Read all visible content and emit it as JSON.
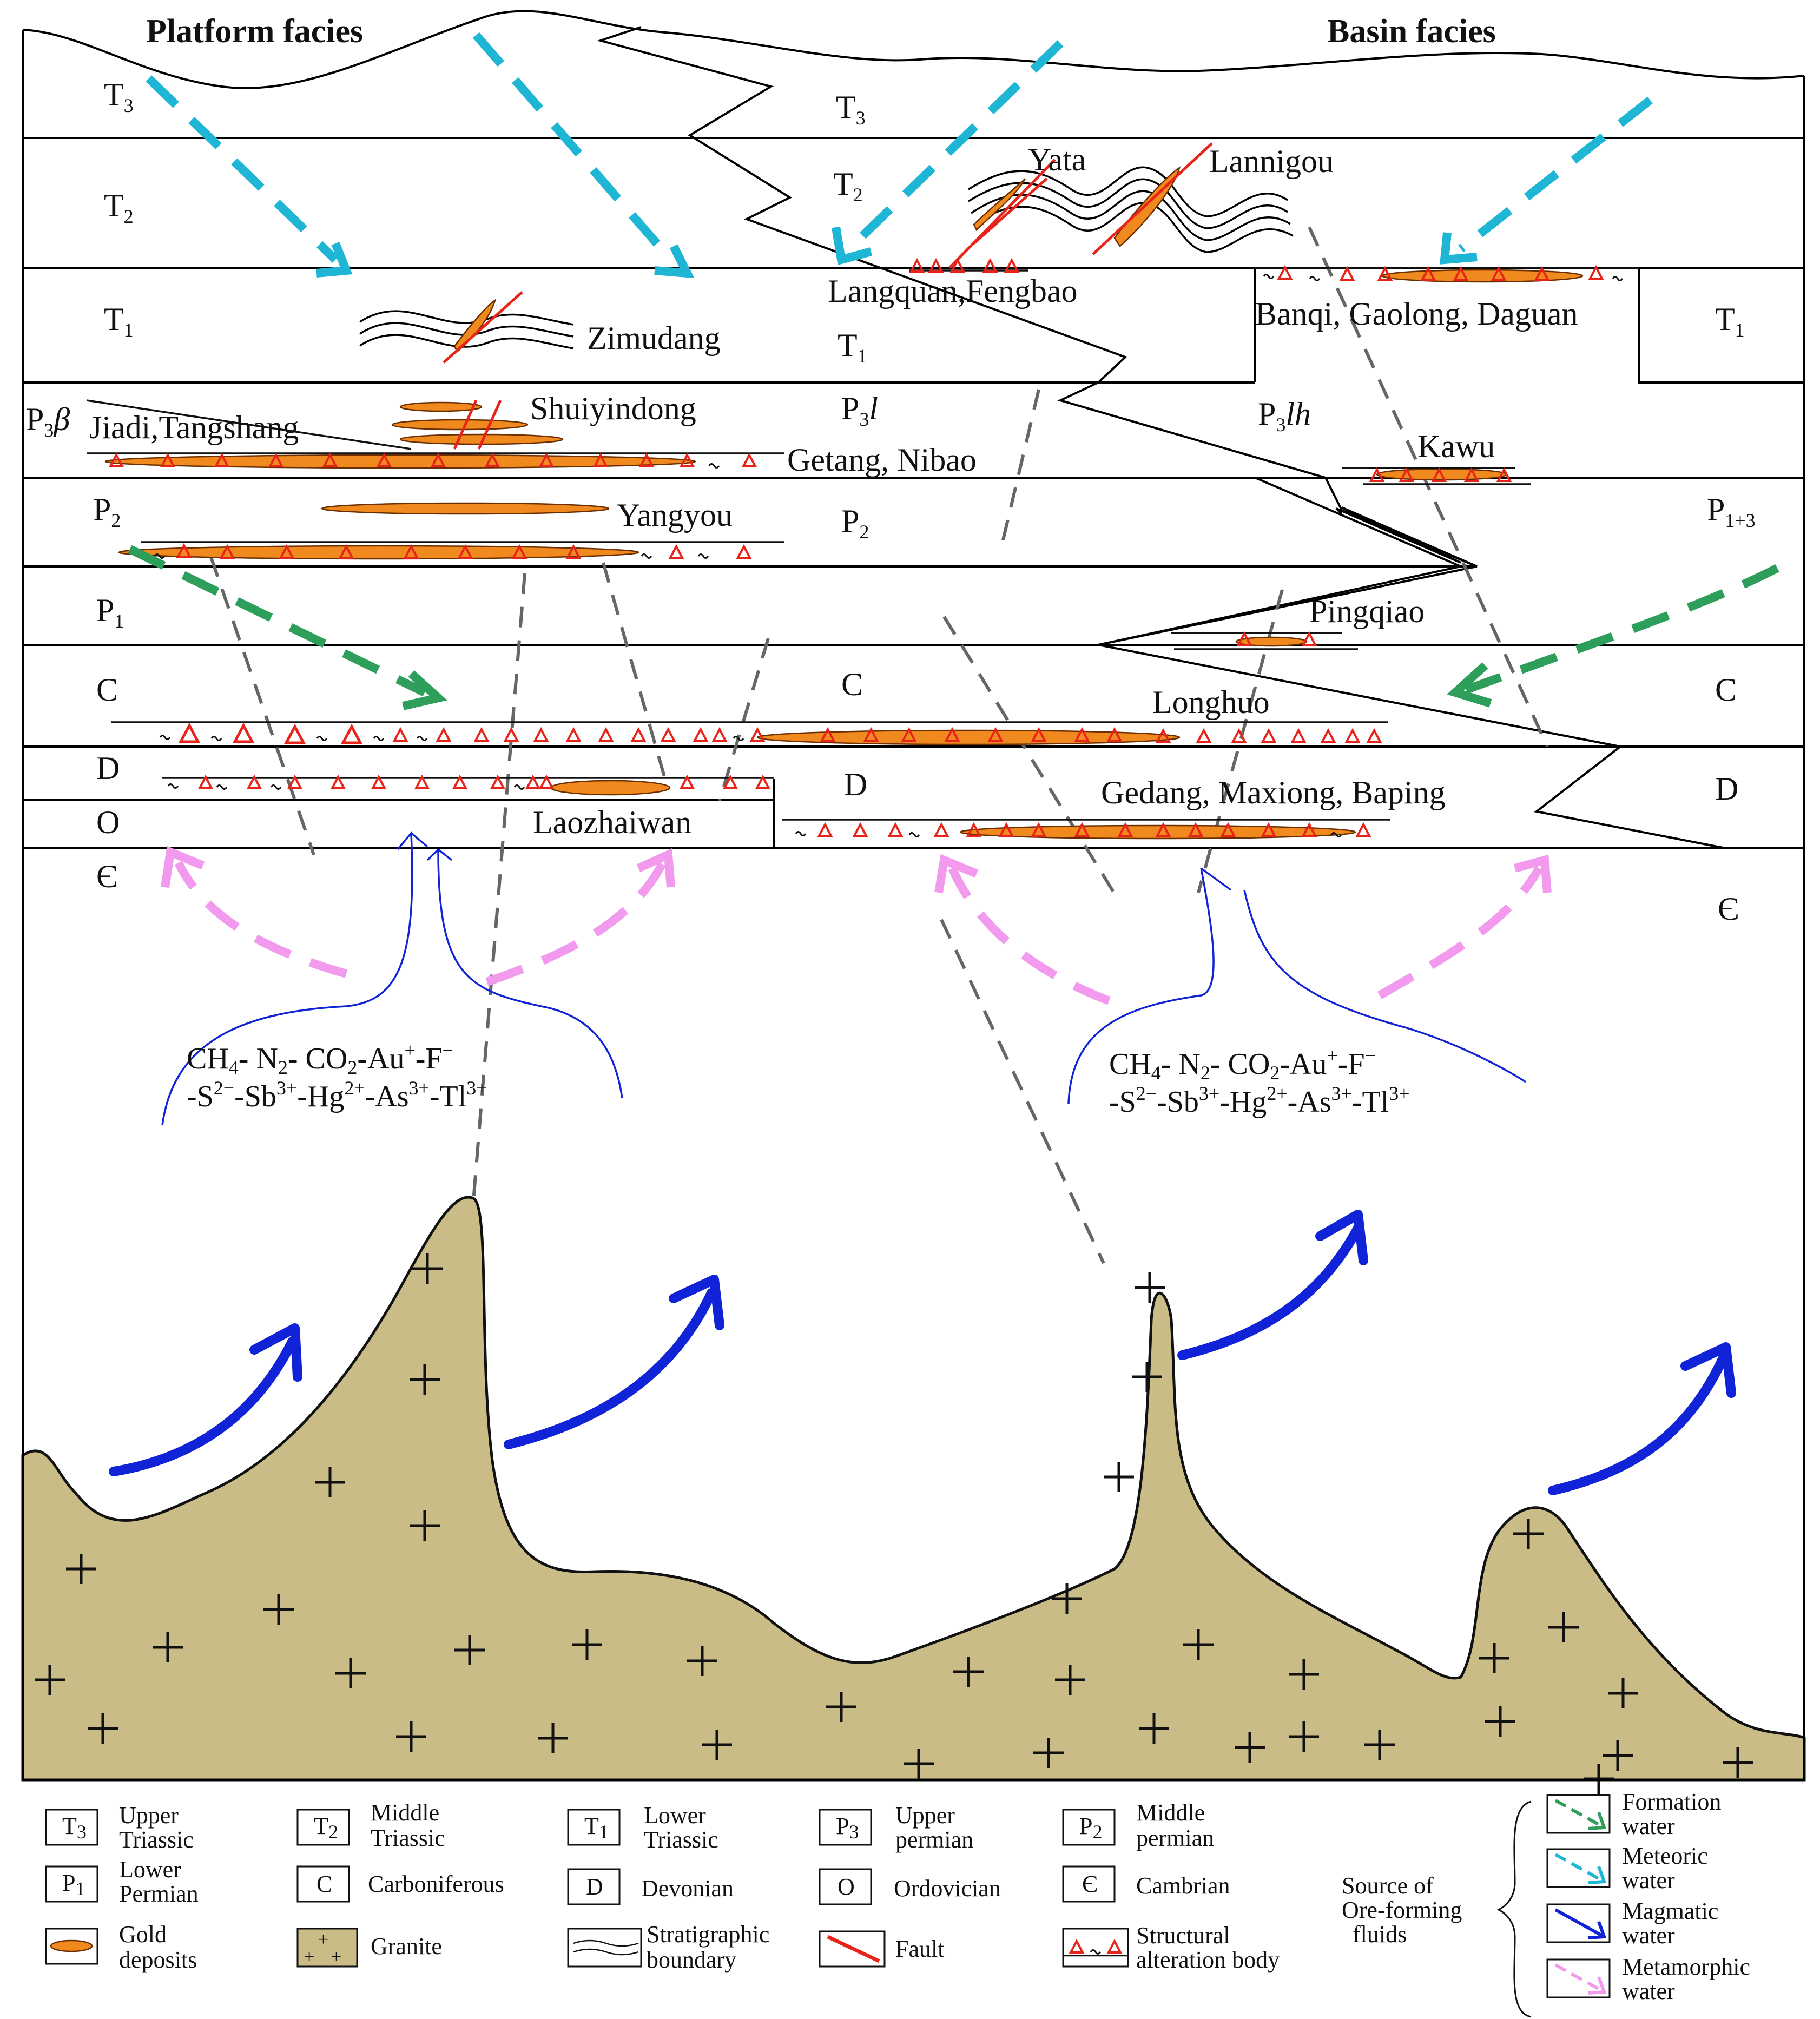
{
  "headers": {
    "platform": "Platform facies",
    "basin": "Basin facies"
  },
  "strata": {
    "t3": "T",
    "t3_sub": "3",
    "t2": "T",
    "t2_sub": "2",
    "t1": "T",
    "t1_sub": "1",
    "p3b": "P",
    "p3b_sub": "3",
    "p3b_sym": "β",
    "p3l": "P",
    "p3l_sub": "3",
    "p3l_sym": "l",
    "p3lh": "P",
    "p3lh_sub": "3",
    "p3lh_sym": "lh",
    "p2": "P",
    "p2_sub": "2",
    "p1": "P",
    "p1_sub": "1",
    "p13": "P",
    "p13_sub": "1+3",
    "c": "C",
    "d": "D",
    "o": "O",
    "cam": "Є"
  },
  "deposits": {
    "yata": "Yata",
    "lannigou": "Lannigou",
    "zimudang": "Zimudang",
    "langquan": "Langquan,Fengbao",
    "banqi": "Banqi, Gaolong, Daguan",
    "shuiyindong": "Shuiyindong",
    "jiadi": "Jiadi,Tangshang",
    "getang": "Getang, Nibao",
    "kawu": "Kawu",
    "yangyou": "Yangyou",
    "pingqiao": "Pingqiao",
    "longhuo": "Longhuo",
    "gedang": "Gedang, Maxiong, Baping",
    "laozhaiwan": "Laozhaiwan"
  },
  "fluid_chem": {
    "ch": "CH",
    "h_sub": "4",
    "n": "- N",
    "n_sub": "2",
    "co": "- CO",
    "co_sub": "2",
    "au": "-Au",
    "au_sup": "+",
    "f": "-F",
    "f_sup": "−",
    "s": "-S",
    "s_sup": "2−",
    "sb": "-Sb",
    "sb_sup": "3+",
    "hg": "-Hg",
    "hg_sup": "2+",
    "as": "-As",
    "as_sup": "3+",
    "tl": "-Tl",
    "tl_sup": "3+"
  },
  "legend": {
    "t3_box": "T",
    "t3_sub": "3",
    "t3_l1": "Upper",
    "t3_l2": "Triassic",
    "t2_box": "T",
    "t2_sub": "2",
    "t2_l1": "Middle",
    "t2_l2": "Triassic",
    "t1_box": "T",
    "t1_sub": "1",
    "t1_l1": "Lower",
    "t1_l2": "Triassic",
    "p3_box": "P",
    "p3_sub": "3",
    "p3_l1": "Upper",
    "p3_l2": "permian",
    "p2_box": "P",
    "p2_sub": "2",
    "p2_l1": "Middle",
    "p2_l2": "permian",
    "p1_box": "P",
    "p1_sub": "1",
    "p1_l1": "Lower",
    "p1_l2": "Permian",
    "c_box": "C",
    "c_label": "Carboniferous",
    "d_box": "D",
    "d_label": "Devonian",
    "o_box": "O",
    "o_label": "Ordovician",
    "cam_box": "Є",
    "cam_label": "Cambrian",
    "gold_l1": "Gold",
    "gold_l2": "deposits",
    "granite": "Granite",
    "strat_l1": "Stratigraphic",
    "strat_l2": "boundary",
    "fault": "Fault",
    "alt_l1": "Structural",
    "alt_l2": "alteration body",
    "source_l1": "Source of",
    "source_l2": "Ore-forming",
    "source_l3": "fluids",
    "formation_l1": "Formation",
    "formation_l2": "water",
    "meteoric_l1": "Meteoric",
    "meteoric_l2": "water",
    "magmatic_l1": "Magmatic",
    "magmatic_l2": "water",
    "metamorphic_l1": "Metamorphic",
    "metamorphic_l2": "water"
  },
  "colors": {
    "granite": "#C9BC86",
    "gold": "#F08A1E",
    "fault": "#E8231A",
    "alteration": "#E8231A",
    "formation_water": "#2E9E5B",
    "meteoric_water": "#1FB5D5",
    "magmatic_water": "#1023D6",
    "metamorphic_water": "#F29BEE",
    "dashed_fault": "#666666"
  }
}
